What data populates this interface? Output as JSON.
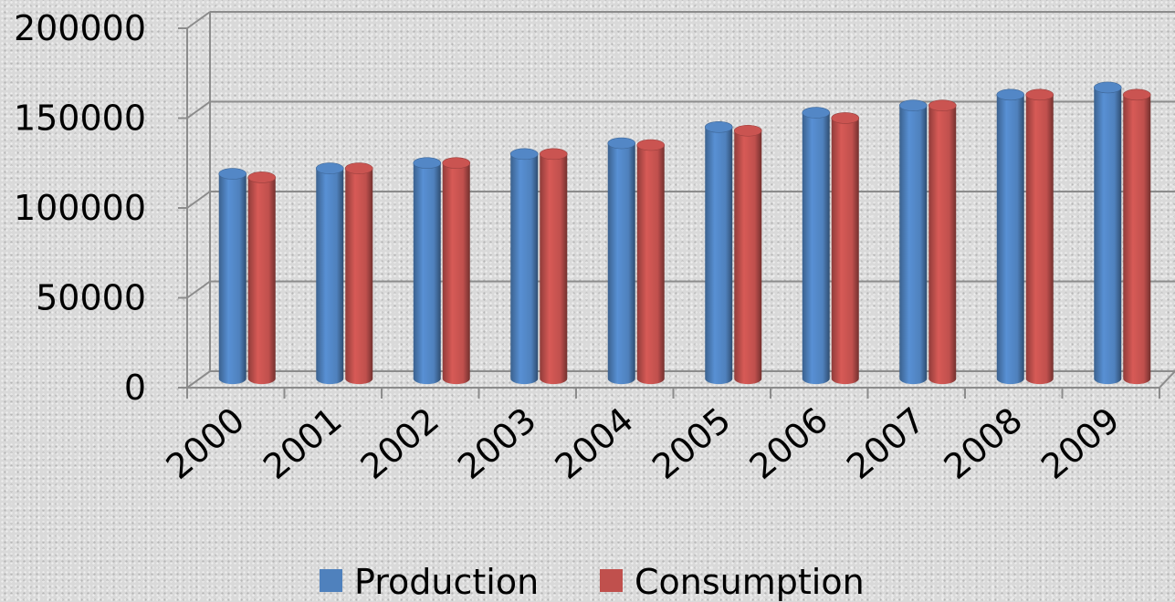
{
  "colors": {
    "production": "#4f81bd",
    "consumption": "#c0504d",
    "grid": "#8c8c8c"
  },
  "chart_data": {
    "type": "bar",
    "categories": [
      "2000",
      "2001",
      "2002",
      "2003",
      "2004",
      "2005",
      "2006",
      "2007",
      "2008",
      "2009"
    ],
    "series": [
      {
        "name": "Production",
        "values": [
          114000,
          117000,
          120000,
          125000,
          131000,
          140000,
          148000,
          152000,
          158000,
          162000
        ]
      },
      {
        "name": "Consumption",
        "values": [
          112000,
          117000,
          120000,
          125000,
          130000,
          138000,
          145000,
          152000,
          158000,
          158000
        ]
      }
    ],
    "ylim": [
      0,
      200000
    ],
    "yticks": [
      "0",
      "50000",
      "100000",
      "150000",
      "200000"
    ],
    "grid": true,
    "legend": "bottom"
  }
}
